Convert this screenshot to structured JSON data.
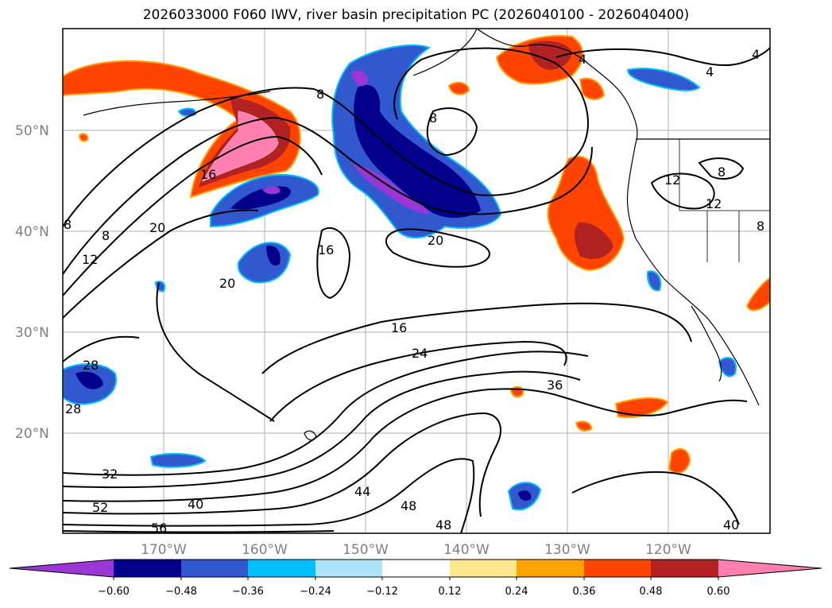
{
  "title": "2026033000 F060 IWV, river basin precipitation PC (2026040100 - 2026040400)",
  "map": {
    "lat_labels": [
      "50°N",
      "40°N",
      "30°N",
      "20°N"
    ],
    "lon_labels": [
      "170°W",
      "160°W",
      "150°W",
      "140°W",
      "130°W",
      "120°W"
    ],
    "contour_labels": [
      "4",
      "4",
      "4",
      "8",
      "8",
      "8",
      "8",
      "8",
      "8",
      "12",
      "12",
      "12",
      "16",
      "16",
      "16",
      "20",
      "20",
      "20",
      "24",
      "28",
      "28",
      "32",
      "36",
      "40",
      "40",
      "44",
      "48",
      "48",
      "52",
      "56"
    ]
  },
  "colorbar": {
    "ticks": [
      "−0.60",
      "−0.48",
      "−0.36",
      "−0.24",
      "−0.12",
      "0.12",
      "0.24",
      "0.36",
      "0.48",
      "0.60"
    ],
    "colors": [
      "#9a35d6",
      "#03008c",
      "#3258d0",
      "#00bfff",
      "#aee3fa",
      "#ffffff",
      "#fde88e",
      "#ffa301",
      "#ff4400",
      "#b22222",
      "#ff80b0"
    ]
  }
}
